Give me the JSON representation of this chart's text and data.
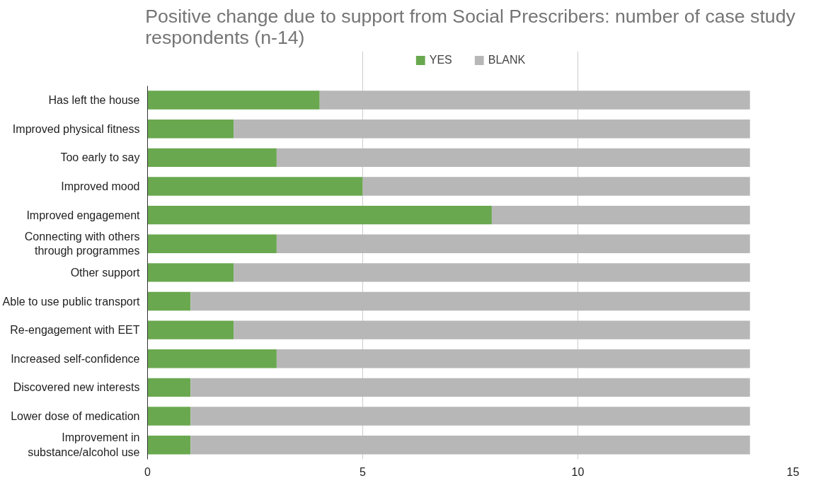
{
  "chart_data": {
    "type": "bar",
    "orientation": "horizontal",
    "stacked": true,
    "title": "Positive change due to support from Social Prescribers: number of case study respondents (n-14)",
    "categories": [
      "Has left the house",
      "Improved physical fitness",
      "Too early to say",
      "Improved mood",
      "Improved engagement",
      "Connecting with others through programmes",
      "Other support",
      "Able to use public transport",
      "Re-engagement with EET",
      "Increased self-confidence",
      "Discovered new interests",
      "Lower dose of medication",
      "Improvement in substance/alcohol use"
    ],
    "series": [
      {
        "name": "YES",
        "color": "#6aa84f",
        "values": [
          4,
          2,
          3,
          5,
          8,
          3,
          2,
          1,
          2,
          3,
          1,
          1,
          1
        ]
      },
      {
        "name": "BLANK",
        "color": "#b7b7b7",
        "values": [
          10,
          12,
          11,
          9,
          6,
          11,
          12,
          13,
          12,
          11,
          13,
          13,
          13
        ]
      }
    ],
    "xlim": [
      0,
      15
    ],
    "xticks": [
      0,
      5,
      10,
      15
    ],
    "grid": "x",
    "legend": "top"
  }
}
